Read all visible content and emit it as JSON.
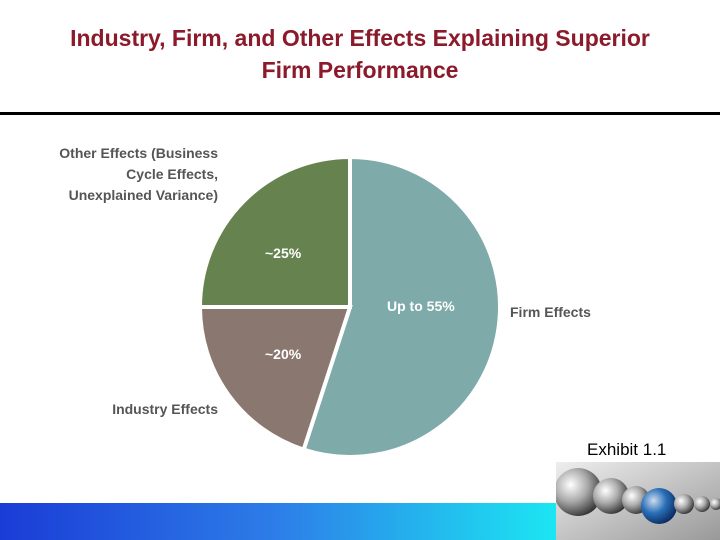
{
  "chart_data": {
    "type": "pie",
    "title": "Industry, Firm, and Other Effects Explaining Superior Firm Performance",
    "categories": [
      "Firm Effects",
      "Industry Effects",
      "Other Effects (Business Cycle Effects, Unexplained Variance)"
    ],
    "values": [
      55,
      20,
      25
    ],
    "value_labels": [
      "Up to 55%",
      "~20%",
      "~25%"
    ],
    "colors": [
      "#7eaaa9",
      "#8a7770",
      "#66834f"
    ],
    "annotation": "Exhibit 1.1"
  }
}
